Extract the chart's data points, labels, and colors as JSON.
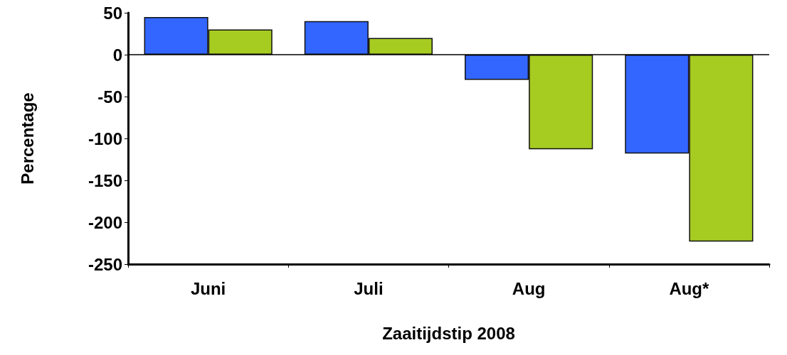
{
  "chart_data": {
    "type": "bar",
    "xlabel": "Zaaitijdstip 2008",
    "ylabel": "Percentage",
    "categories": [
      "Juni",
      "Juli",
      "Aug",
      "Aug*"
    ],
    "series": [
      {
        "color": "#3366ff",
        "values": [
          45,
          40,
          -30,
          -118
        ]
      },
      {
        "color": "#a6cc22",
        "values": [
          30,
          20,
          -113,
          -223
        ]
      }
    ],
    "ylim": [
      -250,
      50
    ],
    "yticks": [
      -250,
      -200,
      -150,
      -100,
      -50,
      0,
      50
    ],
    "ref_lines": [
      {
        "axis": "y",
        "value": 0
      }
    ]
  }
}
